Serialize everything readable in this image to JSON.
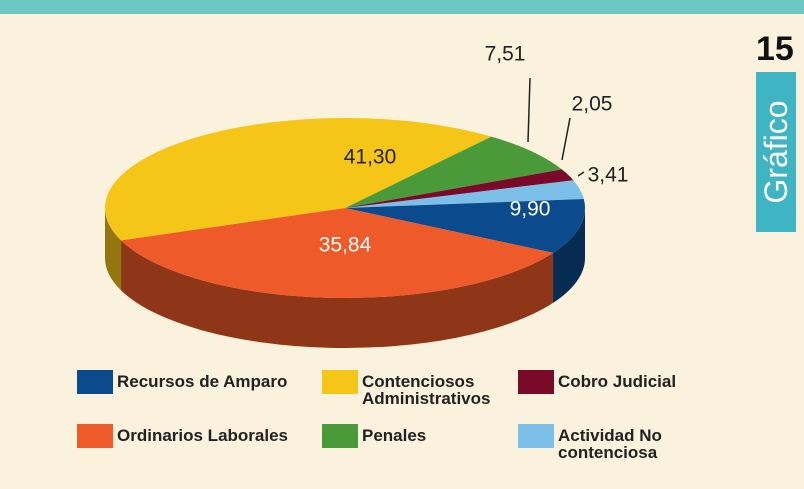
{
  "chart_data": {
    "type": "pie3d",
    "badge_number": "15",
    "badge_label": "Gráfico",
    "categories": [
      "Recursos de Amparo",
      "Contenciosos Administrativos",
      "Cobro Judicial",
      "Ordinarios Laborales",
      "Penales",
      "Actividad No contenciosa"
    ],
    "values": [
      9.9,
      41.3,
      2.05,
      35.84,
      7.51,
      3.41
    ],
    "value_labels": [
      "9,90",
      "41,30",
      "2,05",
      "35,84",
      "7,51",
      "3,41"
    ],
    "colors": [
      "#0b4a8c",
      "#f5c518",
      "#7a0a2a",
      "#ef5a2a",
      "#4a9a3a",
      "#7cc0ea"
    ]
  }
}
